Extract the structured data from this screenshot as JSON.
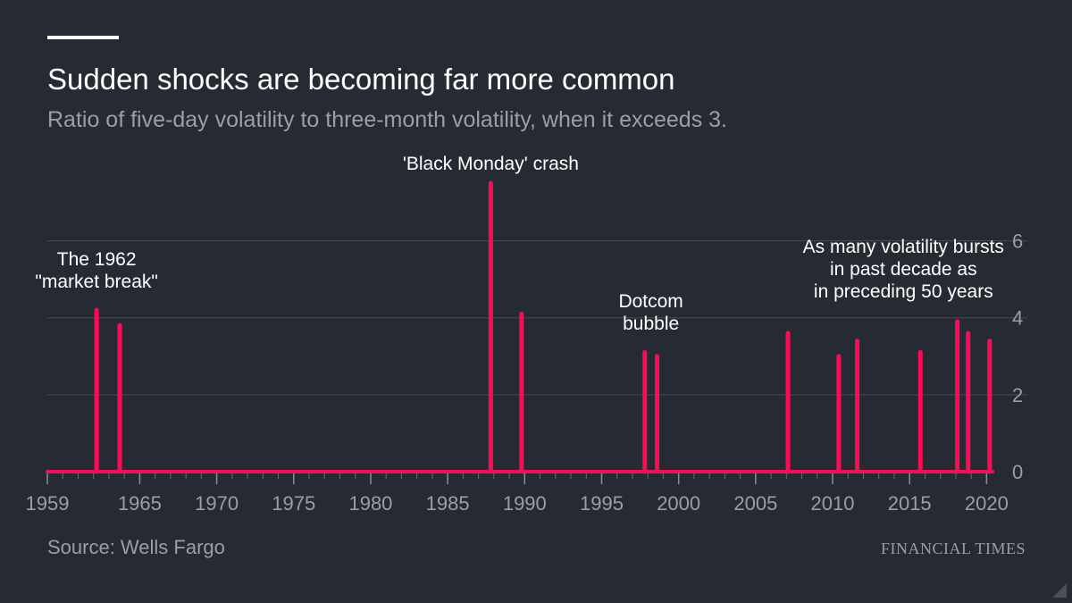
{
  "header": {
    "title": "Sudden shocks are becoming far more common",
    "subtitle": "Ratio of five-day volatility to three-month volatility, when it exceeds 3."
  },
  "footer": {
    "source": "Source: Wells Fargo",
    "brand": "FINANCIAL TIMES"
  },
  "colors": {
    "background": "#262a33",
    "series": "#ff0a55",
    "gridline": "#464a53",
    "text": "#ffffff",
    "muted": "#9a9ea6"
  },
  "chart_data": {
    "type": "bar",
    "title": "Sudden shocks are becoming far more common",
    "subtitle": "Ratio of five-day volatility to three-month volatility, when it exceeds 3.",
    "xlabel": "",
    "ylabel": "",
    "xlim": [
      1959,
      2020.5
    ],
    "ylim": [
      0,
      7.5
    ],
    "y_axis_side": "right",
    "grid": true,
    "x_ticks": [
      1959,
      1965,
      1970,
      1975,
      1980,
      1985,
      1990,
      1995,
      2000,
      2005,
      2010,
      2015,
      2020
    ],
    "x_tick_labels": [
      "1959",
      "1965",
      "1970",
      "1975",
      "1980",
      "1985",
      "1990",
      "1995",
      "2000",
      "2005",
      "2010",
      "2015",
      "2020"
    ],
    "y_ticks": [
      0,
      2,
      4,
      6
    ],
    "y_tick_labels": [
      "0",
      "2",
      "4",
      "6"
    ],
    "series": [
      {
        "x": [
          1962.2,
          1963.7,
          1987.8,
          1989.8,
          1997.8,
          1998.6,
          2007.1,
          2010.4,
          2011.6,
          2015.7,
          2018.1,
          2018.8,
          2020.2
        ],
        "values": [
          4.2,
          3.8,
          7.5,
          4.1,
          3.1,
          3.0,
          3.6,
          3.0,
          3.4,
          3.1,
          3.9,
          3.6,
          3.4
        ]
      }
    ],
    "annotations": [
      {
        "lines": [
          "The 1962",
          "\"market break\""
        ],
        "x": 1962.2
      },
      {
        "lines": [
          "'Black Monday' crash"
        ],
        "x": 1987.8
      },
      {
        "lines": [
          "Dotcom",
          "bubble"
        ],
        "x": 1998.2
      },
      {
        "lines": [
          "As many volatility bursts",
          "in past decade as",
          "in preceding 50 years"
        ],
        "x": 2014.6
      }
    ]
  }
}
